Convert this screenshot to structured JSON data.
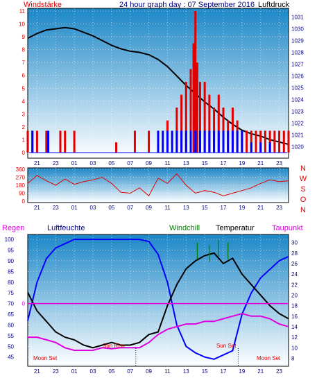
{
  "header": {
    "left_label": "Windstärke",
    "title": "24 hour graph day : 07 September 2016",
    "right_label": "Luftdruck"
  },
  "colors": {
    "red": "#e00000",
    "blue": "#0000ff",
    "black": "#000000",
    "magenta": "#e000e0",
    "green": "#008000",
    "navy": "#000080",
    "bg_top": "#1b87c8",
    "bg_bottom": "#ffffff"
  },
  "x_labels": [
    "21",
    "23",
    "01",
    "03",
    "05",
    "07",
    "09",
    "11",
    "13",
    "15",
    "17",
    "19",
    "21",
    "23"
  ],
  "chart_data": [
    {
      "type": "line",
      "name": "wind_pressure",
      "left_axis": {
        "label": "Windstärke",
        "ticks": [
          "0",
          "1",
          "2",
          "3",
          "4",
          "5",
          "6",
          "7",
          "8",
          "9",
          "10",
          "11"
        ],
        "ylim": [
          0,
          11
        ]
      },
      "right_axis": {
        "label": "Luftdruck",
        "ticks": [
          "1020",
          "1021",
          "1022",
          "1023",
          "1024",
          "1025",
          "1026",
          "1027",
          "1028",
          "1029",
          "1030",
          "1031"
        ],
        "ylim": [
          1019.5,
          1031.5
        ]
      },
      "series": [
        {
          "name": "Luftdruck",
          "axis": "right",
          "color": "#000000",
          "x": [
            0,
            1,
            2,
            3,
            4,
            5,
            6,
            7,
            8,
            9,
            10,
            11,
            12,
            13,
            14,
            15,
            16,
            17,
            18,
            19,
            20,
            21,
            22,
            23,
            24,
            25,
            26,
            27,
            28
          ],
          "values": [
            1029.2,
            1029.6,
            1029.9,
            1030.0,
            1030.1,
            1030.0,
            1029.7,
            1029.4,
            1029.0,
            1028.6,
            1028.3,
            1028.1,
            1028.0,
            1027.8,
            1027.4,
            1026.8,
            1026.0,
            1025.2,
            1024.5,
            1023.8,
            1023.2,
            1022.5,
            1021.9,
            1021.4,
            1021.1,
            1020.9,
            1020.6,
            1020.4,
            1020.2
          ]
        },
        {
          "name": "Wind gusts",
          "axis": "left",
          "color": "#e00000",
          "style": "bars",
          "x": [
            0,
            0.5,
            1,
            2,
            3.5,
            4,
            5,
            9.5,
            11.5,
            13,
            14,
            15,
            16,
            16.5,
            17,
            17.5,
            17.8,
            18,
            18.2,
            18.5,
            19,
            19.5,
            20,
            20.5,
            21,
            21.5,
            22,
            22.5,
            23,
            23.5,
            24,
            24.5,
            25,
            25.5,
            26,
            26.5,
            27,
            27.5,
            28
          ],
          "values": [
            1.7,
            1.7,
            1.7,
            1.7,
            1.7,
            1.7,
            1.7,
            0.8,
            1.7,
            1.7,
            1.7,
            2.5,
            3.5,
            4.5,
            5.5,
            6.5,
            8.5,
            11,
            7,
            5.5,
            5.5,
            4.5,
            3.5,
            4.5,
            3.5,
            2.5,
            3.5,
            2.5,
            1.7,
            1.7,
            1.7,
            1.7,
            1.7,
            1.7,
            1.7,
            1.7,
            1.7,
            1.7,
            1.7
          ]
        },
        {
          "name": "Wind mean",
          "axis": "left",
          "color": "#0000ff",
          "style": "bars",
          "x": [
            0.5,
            2.2,
            14,
            14.5,
            15,
            15.5,
            16,
            16.5,
            17,
            17.5,
            18,
            18.5,
            19,
            19.5,
            20,
            20.5,
            21,
            21.5,
            22,
            22.5,
            23,
            24,
            25,
            26
          ],
          "values": [
            1.7,
            1.7,
            1.7,
            1.7,
            1.7,
            1.7,
            1.7,
            1.7,
            1.7,
            1.7,
            1.7,
            1.7,
            1.7,
            1.7,
            1.7,
            1.7,
            1.7,
            1.7,
            1.7,
            1.7,
            1.7,
            0.8,
            0.8,
            0.8
          ]
        }
      ]
    },
    {
      "type": "line",
      "name": "wind_direction",
      "left_axis": {
        "ticks": [
          "0",
          "90",
          "180",
          "270",
          "360"
        ],
        "ylim": [
          0,
          360
        ]
      },
      "right_axis": {
        "ticks": [
          "N",
          "W",
          "S",
          "O",
          "N"
        ]
      },
      "series": [
        {
          "name": "Wind direction",
          "color": "#e00000",
          "x": [
            0,
            1,
            2,
            3,
            4,
            5,
            6,
            7,
            8,
            9,
            10,
            11,
            12,
            13,
            14,
            15,
            16,
            17,
            18,
            19,
            20,
            21,
            22,
            23,
            24,
            25,
            26,
            27,
            28
          ],
          "values": [
            200,
            290,
            230,
            180,
            250,
            190,
            220,
            240,
            270,
            200,
            100,
            90,
            150,
            60,
            260,
            200,
            310,
            180,
            90,
            120,
            100,
            60,
            90,
            120,
            150,
            200,
            240,
            220,
            230
          ]
        }
      ]
    },
    {
      "type": "line",
      "name": "temp_humidity",
      "legend": [
        "Regen",
        "Luftfeuchte",
        "Windchill",
        "Temperatur",
        "Taupunkt"
      ],
      "left_axis": {
        "ticks": [
          "45",
          "50",
          "55",
          "60",
          "65",
          "70",
          "75",
          "80",
          "85",
          "90",
          "95",
          "100"
        ],
        "ylim": [
          42,
          101
        ]
      },
      "right_axis": {
        "ticks": [
          "8",
          "10",
          "12",
          "14",
          "16",
          "18",
          "20",
          "22",
          "24",
          "26",
          "28",
          "30"
        ],
        "ylim": [
          7,
          31
        ]
      },
      "zero_marker": "0",
      "annotations": [
        "Moon Set",
        "Sun Rise",
        "Sun Set",
        "Moon Set"
      ],
      "series": [
        {
          "name": "Luftfeuchte",
          "axis": "left",
          "color": "#0000ff",
          "x": [
            0,
            1,
            2,
            3,
            4,
            5,
            6,
            7,
            8,
            9,
            10,
            11,
            12,
            13,
            14,
            15,
            16,
            17,
            18,
            19,
            20,
            21,
            22,
            23,
            24,
            25,
            26,
            27,
            28
          ],
          "values": [
            62,
            80,
            91,
            96,
            98,
            100,
            100,
            100,
            100,
            100,
            100,
            100,
            100,
            99,
            93,
            80,
            60,
            50,
            47,
            45,
            44,
            46,
            48,
            65,
            75,
            82,
            86,
            90,
            92
          ]
        },
        {
          "name": "Temperatur",
          "axis": "right",
          "color": "#000000",
          "x": [
            0,
            1,
            2,
            3,
            4,
            5,
            6,
            7,
            8,
            9,
            10,
            11,
            12,
            13,
            14,
            15,
            16,
            17,
            18,
            19,
            20,
            21,
            22,
            23,
            24,
            25,
            26,
            27,
            28
          ],
          "values": [
            20.5,
            17,
            15,
            13,
            12,
            11.5,
            10.5,
            10,
            10.5,
            11,
            10.5,
            10.5,
            11,
            12.5,
            13,
            18,
            22,
            25,
            26.5,
            27.5,
            28,
            26,
            27,
            24,
            22,
            20,
            18,
            16.5,
            15.5
          ]
        },
        {
          "name": "Taupunkt",
          "axis": "right",
          "color": "#e000e0",
          "x": [
            0,
            1,
            2,
            3,
            4,
            5,
            6,
            7,
            8,
            9,
            10,
            11,
            12,
            13,
            14,
            15,
            16,
            17,
            18,
            19,
            20,
            21,
            22,
            23,
            24,
            25,
            26,
            27,
            28
          ],
          "values": [
            12,
            12,
            11.5,
            11,
            10,
            9.5,
            9.5,
            9.5,
            10,
            9.8,
            10,
            10,
            10,
            11,
            12.5,
            13.5,
            14,
            14.5,
            14.5,
            15,
            15,
            15.5,
            16,
            16.5,
            16,
            16,
            15.5,
            14.5,
            14
          ]
        },
        {
          "name": "Windchill",
          "axis": "right",
          "color": "#008000",
          "style": "spikes",
          "x": [
            18.2,
            19.5,
            20.5,
            21.5
          ],
          "values": [
            30,
            29.5,
            30.5,
            30
          ]
        },
        {
          "name": "Regen",
          "axis": "left",
          "color": "#e000e0",
          "style": "flat",
          "x": [
            0,
            28
          ],
          "values": [
            70,
            70
          ]
        }
      ]
    }
  ]
}
